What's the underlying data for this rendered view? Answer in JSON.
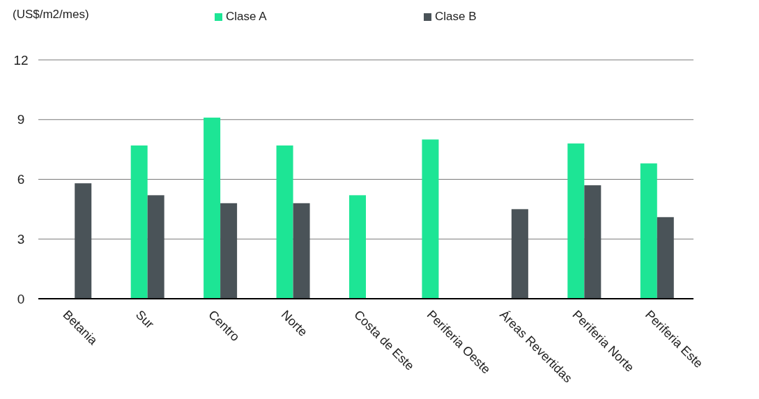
{
  "chart_data": {
    "type": "bar",
    "ylabel": "(US$/m2/mes)",
    "categories": [
      "Betania",
      "Sur",
      "Centro",
      "Norte",
      "Costa de Este",
      "Periferia Oeste",
      "Áreas Revertidas",
      "Periferia Norte",
      "Periferia Este"
    ],
    "series": [
      {
        "name": "Clase A",
        "color": "#1de595",
        "values": [
          null,
          7.7,
          9.1,
          7.7,
          5.2,
          8.0,
          null,
          7.8,
          6.8
        ]
      },
      {
        "name": "Clase B",
        "color": "#4a5358",
        "values": [
          5.8,
          5.2,
          4.8,
          4.8,
          null,
          null,
          4.5,
          5.7,
          4.1
        ]
      }
    ],
    "ylim": [
      0,
      12
    ],
    "yticks": [
      0,
      3,
      6,
      9,
      12
    ],
    "grid": "y",
    "legend": "top"
  }
}
